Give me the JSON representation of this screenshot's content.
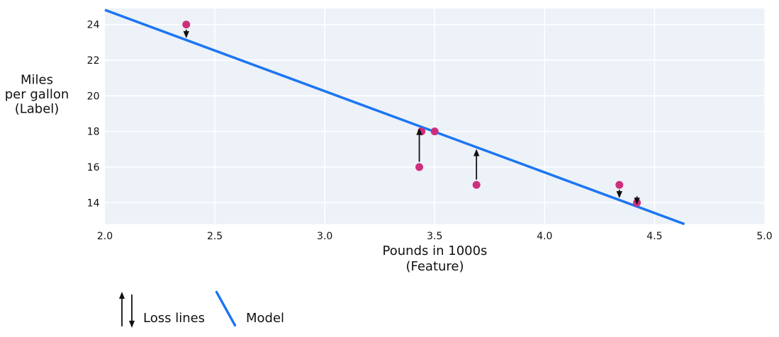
{
  "chart_data": {
    "type": "scatter",
    "title": "",
    "xlabel": "Pounds in 1000s",
    "xlabel_sub": "(Feature)",
    "ylabel_lines": [
      "Miles",
      "per gallon",
      "(Label)"
    ],
    "x_ticks": [
      2.0,
      2.5,
      3.0,
      3.5,
      4.0,
      4.5,
      5.0
    ],
    "y_ticks": [
      14,
      16,
      18,
      20,
      22,
      24
    ],
    "xlim": [
      2.0,
      5.0
    ],
    "ylim": [
      12.8,
      24.9
    ],
    "grid": true,
    "points": [
      {
        "x": 3.5,
        "y": 18,
        "loss_arrow": false
      },
      {
        "x": 3.69,
        "y": 15,
        "loss_arrow": true
      },
      {
        "x": 3.44,
        "y": 18,
        "loss_arrow": false
      },
      {
        "x": 3.43,
        "y": 16,
        "loss_arrow": true
      },
      {
        "x": 4.34,
        "y": 15,
        "loss_arrow": true
      },
      {
        "x": 4.42,
        "y": 14,
        "loss_arrow": true
      },
      {
        "x": 2.37,
        "y": 24,
        "loss_arrow": true
      }
    ],
    "model_line": {
      "slope": -4.56,
      "intercept": 33.94
    },
    "legend": {
      "loss_label": "Loss lines",
      "model_label": "Model"
    }
  },
  "colors": {
    "text": "#111111",
    "plot_bg": "#edf1f8",
    "grid": "#ffffff",
    "model": "#1b76f2",
    "point": "#cc2f7d",
    "arrow": "#111111"
  }
}
